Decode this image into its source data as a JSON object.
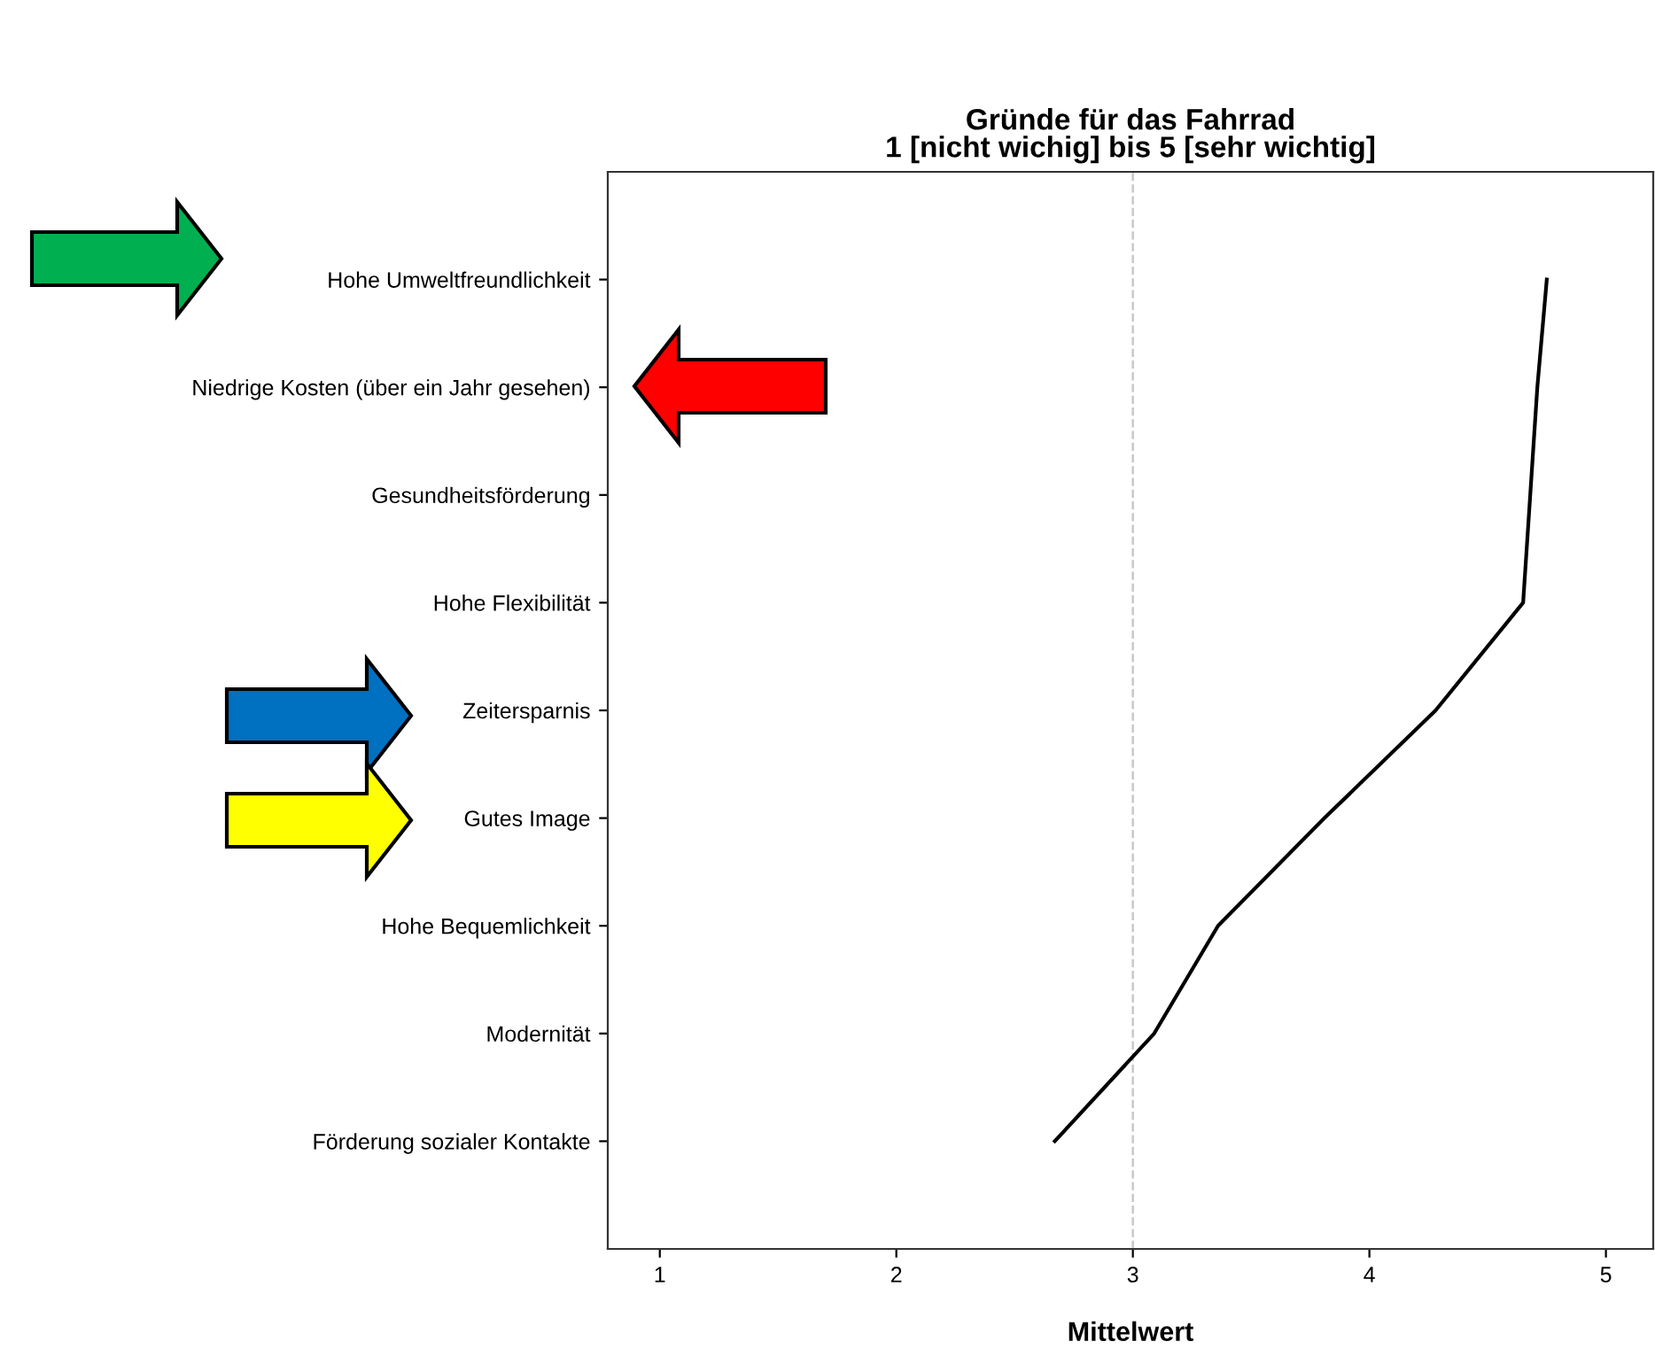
{
  "chart_data": {
    "type": "line",
    "orientation": "horizontal",
    "title": "Gründe für das Fahrrad\n1 [nicht wichig] bis 5 [sehr wichtig]",
    "xlabel": "Mittelwert",
    "categories": [
      "Hohe Umweltfreundlichkeit",
      "Niedrige Kosten (über ein Jahr gesehen)",
      "Gesundheitsförderung",
      "Hohe Flexibilität",
      "Zeitersparnis",
      "Gutes Image",
      "Hohe Bequemlichkeit",
      "Modernität",
      "Förderung sozialer Kontakte"
    ],
    "series": [
      {
        "color": "#000000",
        "values": [
          4.75,
          4.71,
          4.68,
          4.65,
          4.28,
          3.81,
          3.36,
          3.09,
          2.67
        ]
      }
    ],
    "xlim": [
      0.78,
      5.2
    ],
    "xticks": [
      1,
      2,
      3,
      4,
      5
    ],
    "ref_lines": [
      {
        "axis": "x",
        "value": 3,
        "color": "#c8c8c8",
        "line_style": "dashed"
      }
    ],
    "marker": "none",
    "line_style": "solid"
  }
}
